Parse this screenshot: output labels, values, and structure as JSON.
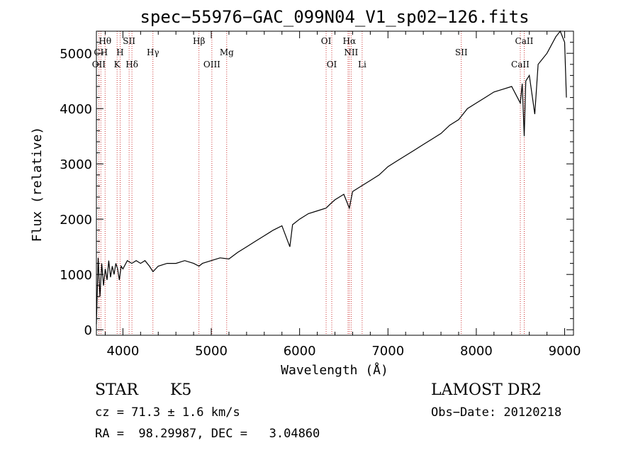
{
  "chart_data": {
    "type": "line",
    "title": "spec−55976−GAC_099N04_V1_sp02−126.fits",
    "xlabel": "Wavelength (Å)",
    "ylabel": "Flux (relative)",
    "xlim": [
      3700,
      9100
    ],
    "ylim": [
      -100,
      5400
    ],
    "xticks": [
      4000,
      5000,
      6000,
      7000,
      8000,
      9000
    ],
    "yticks": [
      0,
      1000,
      2000,
      3000,
      4000,
      5000
    ],
    "grid": false,
    "series": [
      {
        "x": [
          3700,
          3720,
          3740,
          3760,
          3780,
          3800,
          3820,
          3840,
          3860,
          3880,
          3900,
          3920,
          3940,
          3960,
          3980,
          4000,
          4050,
          4100,
          4150,
          4200,
          4250,
          4300,
          4340,
          4400,
          4500,
          4600,
          4700,
          4800,
          4861,
          4900,
          5000,
          5100,
          5200,
          5300,
          5400,
          5500,
          5600,
          5700,
          5800,
          5890,
          5920,
          6000,
          6100,
          6200,
          6300,
          6350,
          6400,
          6500,
          6563,
          6600,
          6700,
          6800,
          6900,
          7000,
          7100,
          7200,
          7300,
          7400,
          7500,
          7600,
          7700,
          7800,
          7850,
          7900,
          8000,
          8100,
          8200,
          8300,
          8400,
          8498,
          8520,
          8542,
          8560,
          8600,
          8662,
          8700,
          8800,
          8900,
          8950,
          9000,
          9020
        ],
        "y": [
          100,
          1300,
          600,
          1200,
          800,
          1100,
          900,
          1250,
          950,
          1150,
          1000,
          1200,
          1100,
          900,
          1150,
          1100,
          1250,
          1200,
          1250,
          1200,
          1250,
          1150,
          1050,
          1150,
          1200,
          1200,
          1250,
          1200,
          1150,
          1200,
          1250,
          1300,
          1280,
          1400,
          1500,
          1600,
          1700,
          1800,
          1880,
          1500,
          1900,
          2000,
          2100,
          2150,
          2200,
          2280,
          2350,
          2450,
          2200,
          2500,
          2600,
          2700,
          2800,
          2950,
          3050,
          3150,
          3250,
          3350,
          3450,
          3550,
          3700,
          3800,
          3900,
          4000,
          4100,
          4200,
          4300,
          4350,
          4400,
          4100,
          4450,
          3500,
          4500,
          4600,
          3900,
          4800,
          5000,
          5300,
          5400,
          5200,
          4200
        ]
      }
    ],
    "emission_lines": [
      {
        "label": "Hθ",
        "x": 3798,
        "row": 1
      },
      {
        "label": "OII",
        "x": 3727,
        "row": 3
      },
      {
        "label": "CH",
        "x": 3750,
        "row": 2
      },
      {
        "label": "SII",
        "x": 4070,
        "row": 1
      },
      {
        "label": "H",
        "x": 3968,
        "row": 2
      },
      {
        "label": "K",
        "x": 3934,
        "row": 3
      },
      {
        "label": "Hδ",
        "x": 4102,
        "row": 3
      },
      {
        "label": "Hγ",
        "x": 4340,
        "row": 2
      },
      {
        "label": "Hβ",
        "x": 4861,
        "row": 1
      },
      {
        "label": "OIII",
        "x": 5007,
        "row": 3
      },
      {
        "label": "Mg",
        "x": 5175,
        "row": 2
      },
      {
        "label": "OI",
        "x": 6300,
        "row": 1
      },
      {
        "label": "OI",
        "x": 6364,
        "row": 3
      },
      {
        "label": "Hα",
        "x": 6563,
        "row": 1
      },
      {
        "label": "NII",
        "x": 6583,
        "row": 2
      },
      {
        "label": "Li",
        "x": 6708,
        "row": 3
      },
      {
        "label": "SII",
        "x": 7830,
        "row": 2
      },
      {
        "label": "CaII",
        "x": 8542,
        "row": 1
      },
      {
        "label": "CaII",
        "x": 8498,
        "row": 3
      }
    ],
    "emission_line_positions": [
      3727,
      3750,
      3798,
      3934,
      3968,
      4070,
      4102,
      4340,
      4861,
      5007,
      5175,
      6300,
      6364,
      6548,
      6563,
      6583,
      6708,
      7830,
      8498,
      8542
    ]
  },
  "info": {
    "class": "STAR",
    "subclass": "K5",
    "survey": "LAMOST DR2",
    "redshift": "cz = 71.3 ± 1.6 km/s",
    "obs_date": "Obs−Date: 20120218",
    "coords": "RA =  98.29987, DEC =   3.04860"
  }
}
